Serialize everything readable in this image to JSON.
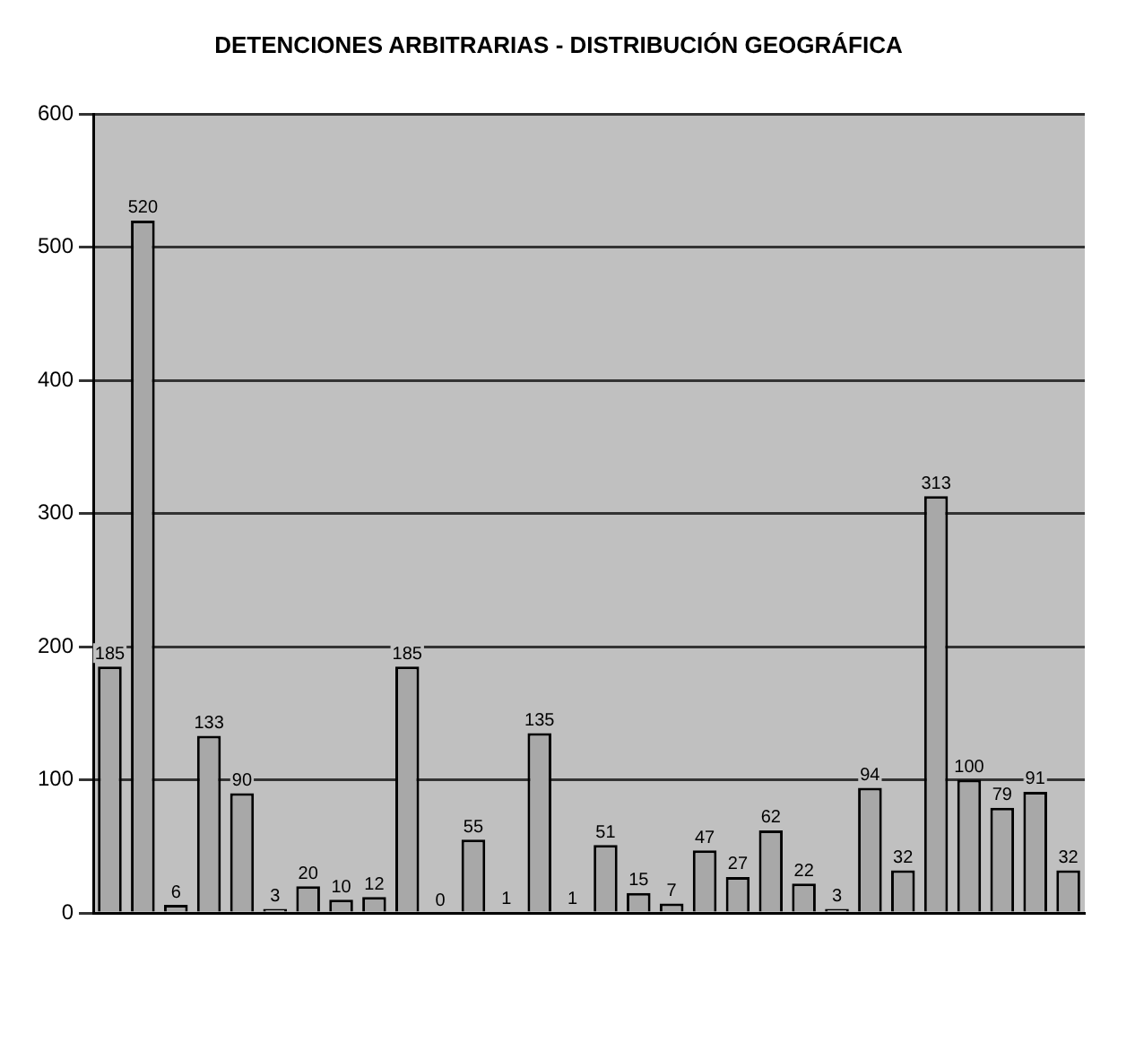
{
  "chart_data": {
    "type": "bar",
    "title": "DETENCIONES ARBITRARIAS - DISTRIBUCIÓN GEOGRÁFICA",
    "categories": [
      null,
      null,
      null,
      null,
      null,
      null,
      null,
      null,
      null,
      null,
      null,
      null,
      null,
      null,
      null,
      null,
      null,
      null,
      null,
      null,
      null,
      null,
      null,
      null,
      null,
      null,
      null,
      null,
      null,
      null
    ],
    "values": [
      185,
      520,
      6,
      133,
      90,
      3,
      20,
      10,
      12,
      185,
      0,
      55,
      1,
      135,
      1,
      51,
      15,
      7,
      47,
      27,
      62,
      22,
      3,
      94,
      32,
      313,
      100,
      79,
      91,
      32
    ],
    "color": "#a8a8a8",
    "ylim": [
      0,
      600
    ],
    "yticks": [
      0,
      100,
      200,
      300,
      400,
      500,
      600
    ],
    "grid": "y",
    "data_labels": true
  }
}
